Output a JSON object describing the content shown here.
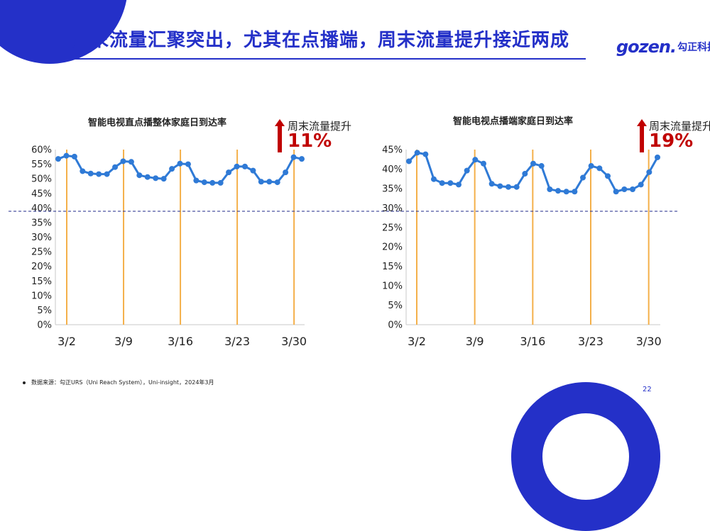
{
  "slide": {
    "title": "周末流量汇聚突出，尤其在点播端，周末流量提升接近两成",
    "logo_mark": "gozen.",
    "logo_cn": "勾正科技",
    "footnote": "数据来源：勾正URS（Uni Reach System），Uni-insight，2024年3月",
    "page_number": "22",
    "brand_color": "#2430c8"
  },
  "chart_data": [
    {
      "type": "line",
      "title": "智能电视直点播整体家庭日到达率",
      "x_tick_labels": [
        "3/2",
        "3/9",
        "3/16",
        "3/23",
        "3/30"
      ],
      "y_tick_labels": [
        "0%",
        "5%",
        "10%",
        "15%",
        "20%",
        "25%",
        "30%",
        "35%",
        "40%",
        "45%",
        "50%",
        "55%",
        "60%"
      ],
      "ylim": [
        0,
        60
      ],
      "uplift_label": "周末流量提升",
      "uplift_value": "11%",
      "series": [
        {
          "color": "#2f7ad6",
          "values": [
            56.8,
            57.9,
            57.6,
            52.6,
            51.8,
            51.6,
            51.6,
            54.0,
            56.0,
            55.8,
            51.2,
            50.6,
            50.2,
            50.0,
            53.4,
            55.2,
            55.0,
            49.4,
            48.8,
            48.6,
            48.6,
            52.2,
            54.2,
            54.2,
            52.8,
            49.0,
            49.0,
            48.8,
            52.2,
            57.4,
            56.8
          ]
        }
      ],
      "weekend_markers": [
        "3/2",
        "3/9",
        "3/16",
        "3/23",
        "3/30"
      ],
      "reference_value": 39
    },
    {
      "type": "line",
      "title": "智能电视点播端家庭日到达率",
      "x_tick_labels": [
        "3/2",
        "3/9",
        "3/16",
        "3/23",
        "3/30"
      ],
      "y_tick_labels": [
        "0%",
        "5%",
        "10%",
        "15%",
        "20%",
        "25%",
        "30%",
        "35%",
        "40%",
        "45%"
      ],
      "ylim": [
        0,
        45
      ],
      "uplift_label": "周末流量提升",
      "uplift_value": "19%",
      "series": [
        {
          "color": "#2f7ad6",
          "values": [
            42.0,
            44.2,
            43.8,
            37.4,
            36.4,
            36.4,
            36.0,
            39.6,
            42.4,
            41.4,
            36.2,
            35.6,
            35.4,
            35.4,
            38.8,
            41.4,
            40.8,
            34.8,
            34.4,
            34.2,
            34.2,
            37.8,
            40.8,
            40.2,
            38.2,
            34.2,
            34.8,
            34.8,
            36.0,
            39.2,
            43.0
          ]
        }
      ],
      "weekend_markers": [
        "3/2",
        "3/9",
        "3/16",
        "3/23",
        "3/30"
      ],
      "reference_value": 29
    }
  ]
}
